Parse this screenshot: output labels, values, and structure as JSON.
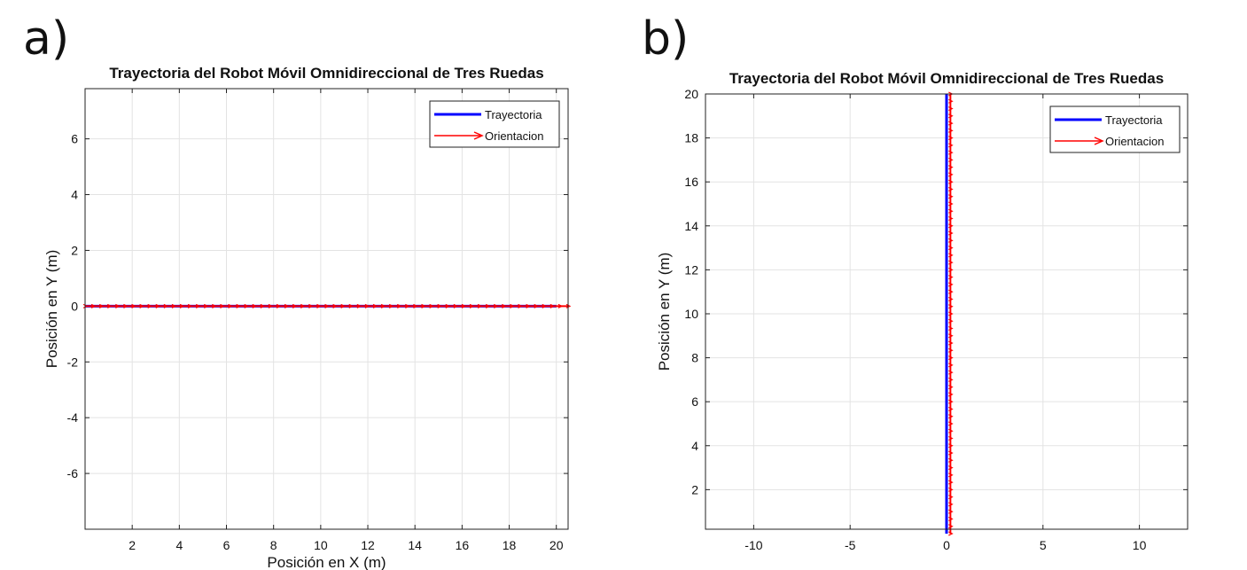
{
  "panels": [
    {
      "letter": "a)"
    },
    {
      "letter": "b)"
    }
  ],
  "chart_data": [
    {
      "type": "line",
      "title": "Trayectoria del Robot Móvil Omnidireccional de Tres Ruedas",
      "xlabel": "Posición en X (m)",
      "ylabel": "Posición en Y (m)",
      "xlim": [
        0,
        20.5
      ],
      "ylim": [
        -8,
        7.8
      ],
      "xticks": [
        2,
        4,
        6,
        8,
        10,
        12,
        14,
        16,
        18,
        20
      ],
      "yticks": [
        -6,
        -4,
        -2,
        0,
        2,
        4,
        6
      ],
      "grid": true,
      "legend_position": "top-right",
      "series": [
        {
          "name": "Trayectoria",
          "color": "#0000ff",
          "x": [
            0,
            20
          ],
          "y": [
            0,
            0
          ]
        },
        {
          "name": "Orientacion",
          "color": "#ff0000",
          "x": [
            0,
            20.5
          ],
          "y": [
            0,
            0
          ],
          "style": "arrows"
        }
      ]
    },
    {
      "type": "line",
      "title": "Trayectoria del Robot Móvil Omnidireccional de Tres Ruedas",
      "xlabel": "",
      "ylabel": "Posición en Y (m)",
      "xlim": [
        -12.5,
        12.5
      ],
      "ylim": [
        0.2,
        20
      ],
      "xticks": [
        -10,
        -5,
        0,
        5,
        10
      ],
      "yticks": [
        2,
        4,
        6,
        8,
        10,
        12,
        14,
        16,
        18,
        20
      ],
      "grid": true,
      "legend_position": "top-right",
      "series": [
        {
          "name": "Trayectoria",
          "color": "#0000ff",
          "x": [
            0,
            0
          ],
          "y": [
            0,
            20
          ]
        },
        {
          "name": "Orientacion",
          "color": "#ff0000",
          "x": [
            0.2,
            0.2
          ],
          "y": [
            0,
            20
          ],
          "style": "arrows"
        }
      ]
    }
  ]
}
